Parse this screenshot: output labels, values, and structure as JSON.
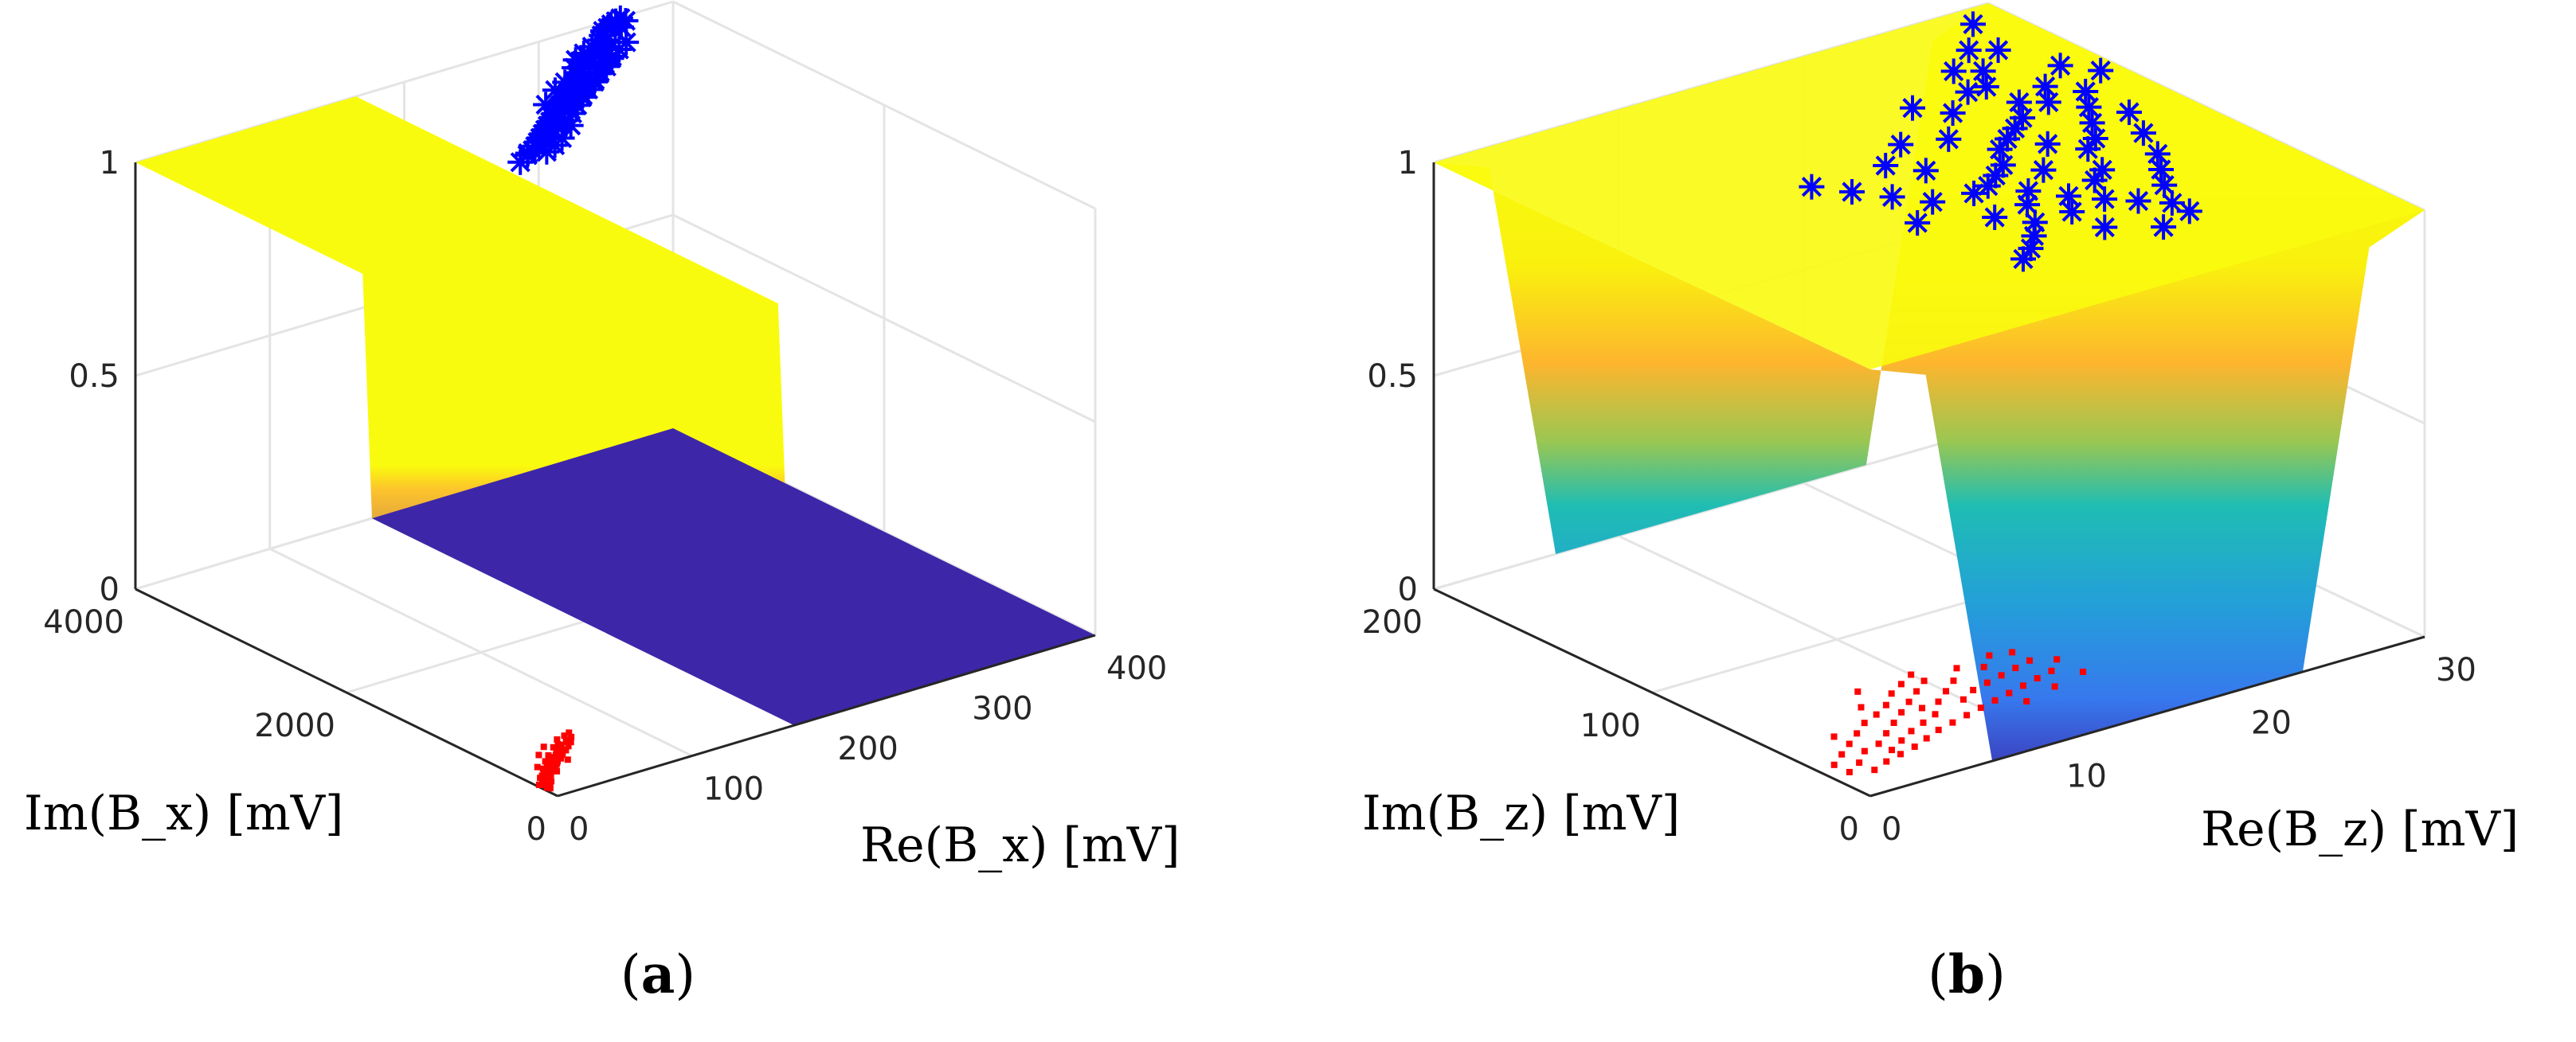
{
  "figure": {
    "captions": [
      {
        "open": "(",
        "letter": "a",
        "close": ")"
      },
      {
        "open": "(",
        "letter": "b",
        "close": ")"
      }
    ]
  },
  "colors": {
    "surface_colormap": "parula",
    "class_high_marker": "#0000ff",
    "class_low_marker": "#ff0000",
    "axis": "#262626",
    "grid": "#e0e0e0"
  },
  "chart_data": [
    {
      "type": "surface3d",
      "panel": "a",
      "surface": "sigmoid step from 0 to 1 along Re(Bx)",
      "xlabel": "Re(B_x) [mV]",
      "ylabel": "Im(B_x) [mV]",
      "zlabel": "",
      "xlim": [
        0,
        400
      ],
      "ylim": [
        0,
        4000
      ],
      "zlim": [
        0,
        1
      ],
      "xticks": [
        "0",
        "100",
        "200",
        "300",
        "400"
      ],
      "yticks": [
        "0",
        "2000",
        "4000"
      ],
      "zticks": [
        "0",
        "0.5",
        "1"
      ],
      "boundary_x": 170,
      "grid": true,
      "series": [
        {
          "marker": "*",
          "color": "blue",
          "z": 1,
          "points": [
            [
              300,
              3650
            ],
            [
              310,
              3700
            ],
            [
              320,
              3750
            ],
            [
              330,
              3800
            ],
            [
              335,
              3850
            ],
            [
              340,
              3900
            ],
            [
              345,
              3920
            ],
            [
              350,
              3950
            ],
            [
              355,
              3970
            ],
            [
              360,
              3990
            ],
            [
              325,
              3700
            ],
            [
              315,
              3620
            ],
            [
              305,
              3580
            ],
            [
              295,
              3520
            ],
            [
              290,
              3480
            ],
            [
              285,
              3440
            ],
            [
              280,
              3400
            ],
            [
              275,
              3360
            ],
            [
              270,
              3320
            ],
            [
              265,
              3280
            ],
            [
              260,
              3240
            ],
            [
              255,
              3200
            ],
            [
              250,
              3160
            ],
            [
              245,
              3120
            ],
            [
              240,
              3080
            ],
            [
              235,
              3040
            ],
            [
              230,
              3000
            ],
            [
              225,
              2960
            ],
            [
              220,
              2920
            ],
            [
              215,
              2880
            ],
            [
              210,
              2840
            ],
            [
              205,
              2800
            ],
            [
              200,
              2760
            ],
            [
              195,
              2720
            ],
            [
              190,
              2700
            ],
            [
              250,
              3080
            ],
            [
              260,
              3160
            ],
            [
              270,
              3200
            ],
            [
              280,
              3300
            ],
            [
              290,
              3340
            ],
            [
              300,
              3420
            ],
            [
              310,
              3500
            ],
            [
              320,
              3560
            ],
            [
              330,
              3620
            ],
            [
              340,
              3680
            ],
            [
              228,
              2900
            ],
            [
              238,
              2960
            ],
            [
              248,
              3020
            ],
            [
              258,
              3100
            ],
            [
              268,
              3180
            ],
            [
              278,
              3250
            ],
            [
              288,
              3320
            ],
            [
              298,
              3400
            ],
            [
              308,
              3460
            ],
            [
              318,
              3540
            ],
            [
              200,
              2650
            ],
            [
              210,
              2700
            ],
            [
              220,
              2760
            ],
            [
              216,
              2820
            ],
            [
              236,
              2880
            ],
            [
              178,
              2620
            ],
            [
              188,
              2680
            ],
            [
              244,
              3220
            ],
            [
              274,
              3420
            ],
            [
              302,
              3620
            ],
            [
              332,
              3780
            ],
            [
              346,
              3860
            ],
            [
              352,
              3880
            ],
            [
              360,
              3940
            ],
            [
              292,
              3560
            ],
            [
              262,
              3360
            ]
          ]
        },
        {
          "marker": ".",
          "color": "red",
          "z": 0,
          "points": [
            [
              2,
              200
            ],
            [
              5,
              180
            ],
            [
              8,
              240
            ],
            [
              10,
              260
            ],
            [
              12,
              300
            ],
            [
              15,
              320
            ],
            [
              18,
              340
            ],
            [
              20,
              360
            ],
            [
              22,
              380
            ],
            [
              25,
              400
            ],
            [
              28,
              420
            ],
            [
              30,
              440
            ],
            [
              32,
              460
            ],
            [
              35,
              480
            ],
            [
              38,
              500
            ],
            [
              40,
              520
            ],
            [
              42,
              540
            ],
            [
              45,
              560
            ],
            [
              48,
              580
            ],
            [
              50,
              600
            ],
            [
              6,
              220
            ],
            [
              9,
              280
            ],
            [
              14,
              260
            ],
            [
              16,
              300
            ],
            [
              19,
              380
            ],
            [
              24,
              340
            ],
            [
              27,
              460
            ],
            [
              31,
              400
            ],
            [
              34,
              520
            ],
            [
              37,
              440
            ],
            [
              41,
              480
            ],
            [
              44,
              600
            ],
            [
              47,
              520
            ],
            [
              52,
              560
            ],
            [
              55,
              620
            ],
            [
              58,
              640
            ],
            [
              60,
              700
            ],
            [
              62,
              660
            ],
            [
              65,
              720
            ],
            [
              7,
              160
            ],
            [
              11,
              200
            ],
            [
              13,
              240
            ],
            [
              17,
              280
            ],
            [
              21,
              320
            ],
            [
              26,
              360
            ],
            [
              29,
              380
            ],
            [
              33,
              420
            ],
            [
              36,
              460
            ],
            [
              39,
              400
            ],
            [
              43,
              500
            ],
            [
              46,
              540
            ],
            [
              49,
              620
            ],
            [
              53,
              680
            ],
            [
              57,
              600
            ],
            [
              3,
              140
            ],
            [
              4,
              120
            ],
            [
              23,
              300
            ],
            [
              18,
              420
            ],
            [
              30,
              560
            ],
            [
              40,
              640
            ]
          ]
        }
      ]
    },
    {
      "type": "surface3d",
      "panel": "b",
      "surface": "sigmoid rise from 0 to 1 on both sides of a low basin",
      "xlabel": "Re(B_z) [mV]",
      "ylabel": "Im(B_z) [mV]",
      "zlabel": "",
      "xlim": [
        0,
        30
      ],
      "ylim": [
        0,
        200
      ],
      "zlim": [
        0,
        1
      ],
      "xticks": [
        "0",
        "10",
        "20",
        "30"
      ],
      "yticks": [
        "0",
        "100",
        "200"
      ],
      "zticks": [
        "0",
        "0.5",
        "1"
      ],
      "grid": true,
      "series": [
        {
          "marker": "*",
          "color": "blue",
          "z": 1,
          "points": [
            [
              28,
              190
            ],
            [
              27,
              170
            ],
            [
              26,
              175
            ],
            [
              25,
              160
            ],
            [
              24,
              150
            ],
            [
              26,
              140
            ],
            [
              25,
              130
            ],
            [
              24,
              135
            ],
            [
              23,
              125
            ],
            [
              22,
              120
            ],
            [
              21,
              115
            ],
            [
              22,
              105
            ],
            [
              20,
              110
            ],
            [
              19,
              100
            ],
            [
              18,
              95
            ],
            [
              17,
              90
            ],
            [
              16,
              88
            ],
            [
              18,
              80
            ],
            [
              19,
              70
            ],
            [
              20,
              62
            ],
            [
              21,
              55
            ],
            [
              22,
              48
            ],
            [
              17,
              72
            ],
            [
              16,
              60
            ],
            [
              15,
              52
            ],
            [
              14,
              45
            ],
            [
              13,
              40
            ],
            [
              20,
              90
            ],
            [
              22,
              80
            ],
            [
              24,
              100
            ],
            [
              25,
              110
            ],
            [
              26,
              120
            ],
            [
              27,
              130
            ],
            [
              23,
              95
            ],
            [
              21,
              75
            ],
            [
              18,
              60
            ],
            [
              15,
              70
            ],
            [
              14,
              90
            ],
            [
              13,
              100
            ],
            [
              12,
              110
            ],
            [
              16,
              110
            ],
            [
              19,
              125
            ],
            [
              21,
              140
            ],
            [
              23,
              150
            ],
            [
              24,
              165
            ],
            [
              20,
              150
            ],
            [
              17,
              130
            ],
            [
              15,
              120
            ],
            [
              28,
              150
            ],
            [
              29,
              140
            ],
            [
              27,
              110
            ],
            [
              26,
              95
            ],
            [
              25,
              80
            ],
            [
              24,
              70
            ],
            [
              23,
              60
            ],
            [
              22,
              40
            ],
            [
              20,
              35
            ],
            [
              18,
              45
            ],
            [
              11,
              120
            ],
            [
              12,
              80
            ]
          ]
        },
        {
          "marker": ".",
          "color": "red",
          "z": 0,
          "points": [
            [
              2,
              15
            ],
            [
              3,
              18
            ],
            [
              4,
              20
            ],
            [
              5,
              22
            ],
            [
              6,
              25
            ],
            [
              7,
              28
            ],
            [
              8,
              30
            ],
            [
              9,
              32
            ],
            [
              10,
              34
            ],
            [
              11,
              36
            ],
            [
              12,
              38
            ],
            [
              13,
              40
            ],
            [
              14,
              42
            ],
            [
              15,
              44
            ],
            [
              4,
              30
            ],
            [
              5,
              35
            ],
            [
              6,
              40
            ],
            [
              7,
              45
            ],
            [
              8,
              50
            ],
            [
              9,
              55
            ],
            [
              10,
              60
            ],
            [
              3,
              28
            ],
            [
              6,
              32
            ],
            [
              8,
              38
            ],
            [
              10,
              42
            ],
            [
              12,
              48
            ],
            [
              14,
              52
            ],
            [
              11,
              55
            ],
            [
              9,
              45
            ],
            [
              7,
              35
            ],
            [
              5,
              28
            ],
            [
              4,
              24
            ],
            [
              13,
              58
            ],
            [
              15,
              62
            ],
            [
              16,
              50
            ],
            [
              2,
              22
            ],
            [
              3,
              35
            ],
            [
              6,
              48
            ],
            [
              8,
              58
            ],
            [
              10,
              66
            ],
            [
              12,
              30
            ],
            [
              14,
              34
            ],
            [
              1,
              18
            ],
            [
              2,
              30
            ],
            [
              5,
              45
            ],
            [
              7,
              52
            ],
            [
              9,
              62
            ],
            [
              11,
              46
            ],
            [
              13,
              50
            ],
            [
              15,
              54
            ],
            [
              16,
              38
            ],
            [
              4,
              40
            ],
            [
              6,
              55
            ],
            [
              8,
              44
            ],
            [
              10,
              50
            ],
            [
              12,
              62
            ],
            [
              3,
              42
            ],
            [
              1,
              25
            ],
            [
              7,
              65
            ],
            [
              14,
              64
            ]
          ]
        }
      ]
    }
  ]
}
